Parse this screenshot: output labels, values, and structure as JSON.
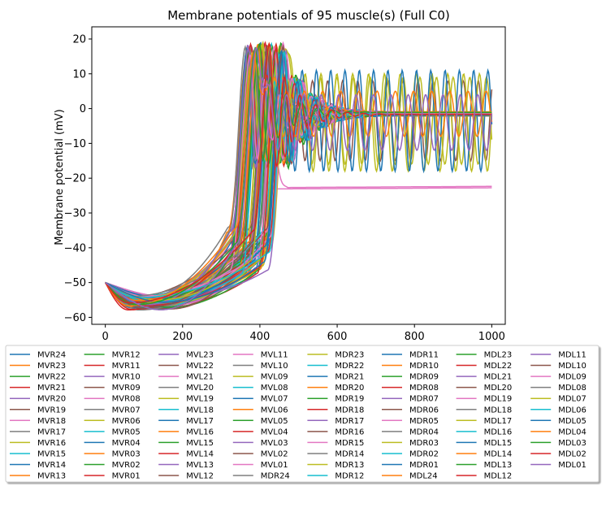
{
  "chart_data": {
    "type": "line",
    "title": "Membrane potentials of 95 muscle(s) (Full C0)",
    "xlabel": "",
    "ylabel": "Membrane potential (mV)",
    "xlim": [
      -35,
      1035
    ],
    "ylim": [
      -62,
      23.5
    ],
    "xticks": [
      0,
      200,
      400,
      600,
      800,
      1000
    ],
    "yticks": [
      20,
      10,
      0,
      -10,
      -20,
      -30,
      -40,
      -50,
      -60
    ],
    "grid": false,
    "legend_placement": "below",
    "colors": [
      "#1f77b4",
      "#ff7f0e",
      "#2ca02c",
      "#d62728",
      "#9467bd",
      "#8c564b",
      "#e377c2",
      "#7f7f7f",
      "#bcbd22",
      "#17becf"
    ],
    "series": [
      {
        "name": "MVR24"
      },
      {
        "name": "MVR23"
      },
      {
        "name": "MVR22"
      },
      {
        "name": "MVR21"
      },
      {
        "name": "MVR20"
      },
      {
        "name": "MVR19"
      },
      {
        "name": "MVR18"
      },
      {
        "name": "MVR17"
      },
      {
        "name": "MVR16"
      },
      {
        "name": "MVR15"
      },
      {
        "name": "MVR14"
      },
      {
        "name": "MVR13"
      },
      {
        "name": "MVR12"
      },
      {
        "name": "MVR11"
      },
      {
        "name": "MVR10"
      },
      {
        "name": "MVR09"
      },
      {
        "name": "MVR08"
      },
      {
        "name": "MVR07"
      },
      {
        "name": "MVR06"
      },
      {
        "name": "MVR05"
      },
      {
        "name": "MVR04"
      },
      {
        "name": "MVR03"
      },
      {
        "name": "MVR02"
      },
      {
        "name": "MVR01"
      },
      {
        "name": "MVL23"
      },
      {
        "name": "MVL22"
      },
      {
        "name": "MVL21"
      },
      {
        "name": "MVL20"
      },
      {
        "name": "MVL19"
      },
      {
        "name": "MVL18"
      },
      {
        "name": "MVL17"
      },
      {
        "name": "MVL16"
      },
      {
        "name": "MVL15"
      },
      {
        "name": "MVL14"
      },
      {
        "name": "MVL13"
      },
      {
        "name": "MVL12"
      },
      {
        "name": "MVL11"
      },
      {
        "name": "MVL10"
      },
      {
        "name": "MVL09"
      },
      {
        "name": "MVL08"
      },
      {
        "name": "MVL07"
      },
      {
        "name": "MVL06"
      },
      {
        "name": "MVL05"
      },
      {
        "name": "MVL04"
      },
      {
        "name": "MVL03"
      },
      {
        "name": "MVL02"
      },
      {
        "name": "MVL01"
      },
      {
        "name": "MDR24"
      },
      {
        "name": "MDR23"
      },
      {
        "name": "MDR22"
      },
      {
        "name": "MDR21"
      },
      {
        "name": "MDR20"
      },
      {
        "name": "MDR19"
      },
      {
        "name": "MDR18"
      },
      {
        "name": "MDR17"
      },
      {
        "name": "MDR16"
      },
      {
        "name": "MDR15"
      },
      {
        "name": "MDR14"
      },
      {
        "name": "MDR13"
      },
      {
        "name": "MDR12"
      },
      {
        "name": "MDR11"
      },
      {
        "name": "MDR10"
      },
      {
        "name": "MDR09"
      },
      {
        "name": "MDR08"
      },
      {
        "name": "MDR07"
      },
      {
        "name": "MDR06"
      },
      {
        "name": "MDR05"
      },
      {
        "name": "MDR04"
      },
      {
        "name": "MDR03"
      },
      {
        "name": "MDR02"
      },
      {
        "name": "MDR01"
      },
      {
        "name": "MDL24"
      },
      {
        "name": "MDL23"
      },
      {
        "name": "MDL22"
      },
      {
        "name": "MDL21"
      },
      {
        "name": "MDL20"
      },
      {
        "name": "MDL19"
      },
      {
        "name": "MDL18"
      },
      {
        "name": "MDL17"
      },
      {
        "name": "MDL16"
      },
      {
        "name": "MDL15"
      },
      {
        "name": "MDL14"
      },
      {
        "name": "MDL13"
      },
      {
        "name": "MDL12"
      },
      {
        "name": "MDL11"
      },
      {
        "name": "MDL10"
      },
      {
        "name": "MDL09"
      },
      {
        "name": "MDL08"
      },
      {
        "name": "MDL07"
      },
      {
        "name": "MDL06"
      },
      {
        "name": "MDL05"
      },
      {
        "name": "MDL04"
      },
      {
        "name": "MDL03"
      },
      {
        "name": "MDL02"
      },
      {
        "name": "MDL01"
      }
    ],
    "trace_model": {
      "start_mV": -50,
      "t_end": 1000,
      "trough_mV_range": [
        -54,
        -58
      ],
      "trough_t_range": [
        55,
        170
      ],
      "rise_t_range": [
        360,
        470
      ],
      "peak_mV_range": [
        15,
        19
      ],
      "settle_mV": -1.5,
      "sustained_oscillators": [
        {
          "series": "MDR21",
          "period": 37,
          "phase": 0.0,
          "min": -18,
          "max": 11
        },
        {
          "series": "MDR23",
          "period": 41,
          "phase": 0.5,
          "min": -18,
          "max": 10
        },
        {
          "series": "MVR16",
          "period": 43,
          "phase": 1.1,
          "min": -16,
          "max": 9
        },
        {
          "series": "MVR19",
          "period": 39,
          "phase": 2.0,
          "min": -15,
          "max": 8
        },
        {
          "series": "MDL04",
          "period": 47,
          "phase": 2.7,
          "min": -8,
          "max": 5
        },
        {
          "series": "MDL01",
          "period": 45,
          "phase": 3.3,
          "min": -12,
          "max": 4
        }
      ],
      "plateau_series": [
        {
          "series": "MVL21",
          "mV": -23
        },
        {
          "series": "MVR18",
          "mV": -22.6
        }
      ]
    }
  }
}
